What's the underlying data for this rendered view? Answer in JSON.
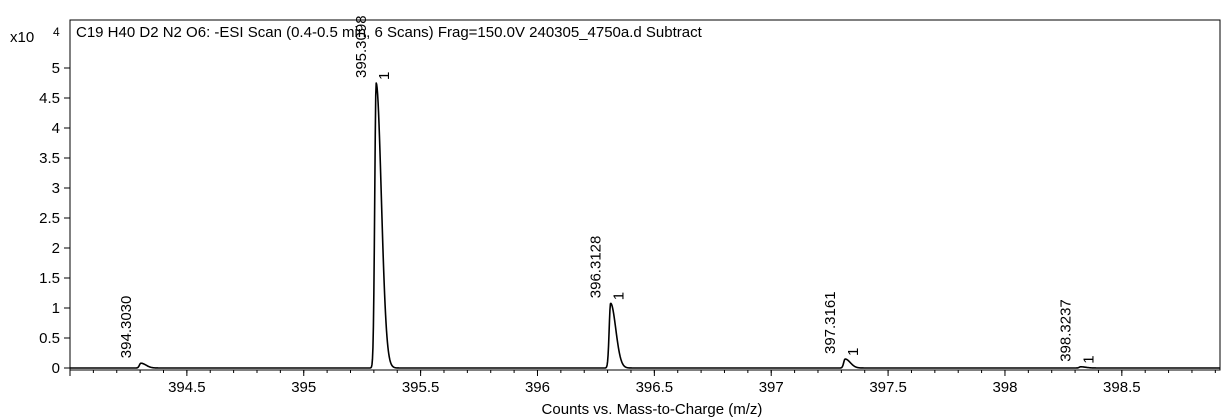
{
  "chart_data": {
    "type": "line",
    "title": "C19 H40 D2 N2 O6: -ESI Scan (0.4-0.5 min, 6 Scans) Frag=150.0V 240305_4750a.d  Subtract",
    "xlabel": "Counts vs. Mass-to-Charge (m/z)",
    "ylabel": "",
    "y_multiplier_label": "x10",
    "y_multiplier_exponent": "4",
    "xlim": [
      394.0,
      398.92
    ],
    "ylim": [
      0,
      5.0
    ],
    "x_ticks": [
      394.5,
      395,
      395.5,
      396,
      396.5,
      397,
      397.5,
      398,
      398.5
    ],
    "x_tick_labels": [
      "394.5",
      "395",
      "395.5",
      "396",
      "396.5",
      "397",
      "397.5",
      "398",
      "398.5"
    ],
    "y_ticks": [
      0,
      0.5,
      1,
      1.5,
      2,
      2.5,
      3,
      3.5,
      4,
      4.5,
      5
    ],
    "y_tick_labels": [
      "0",
      "0.5",
      "1",
      "1.5",
      "2",
      "2.5",
      "3",
      "3.5",
      "4",
      "4.5",
      "5"
    ],
    "grid": false,
    "peaks": [
      {
        "mz": 394.303,
        "height": 0.08,
        "label": "394.3030",
        "charge": ""
      },
      {
        "mz": 395.3098,
        "height": 4.75,
        "label": "395.3098",
        "charge": "1"
      },
      {
        "mz": 396.3128,
        "height": 1.08,
        "label": "396.3128",
        "charge": "1"
      },
      {
        "mz": 397.3161,
        "height": 0.15,
        "label": "397.3161",
        "charge": "1"
      },
      {
        "mz": 398.3237,
        "height": 0.02,
        "label": "398.3237",
        "charge": "1"
      }
    ]
  }
}
